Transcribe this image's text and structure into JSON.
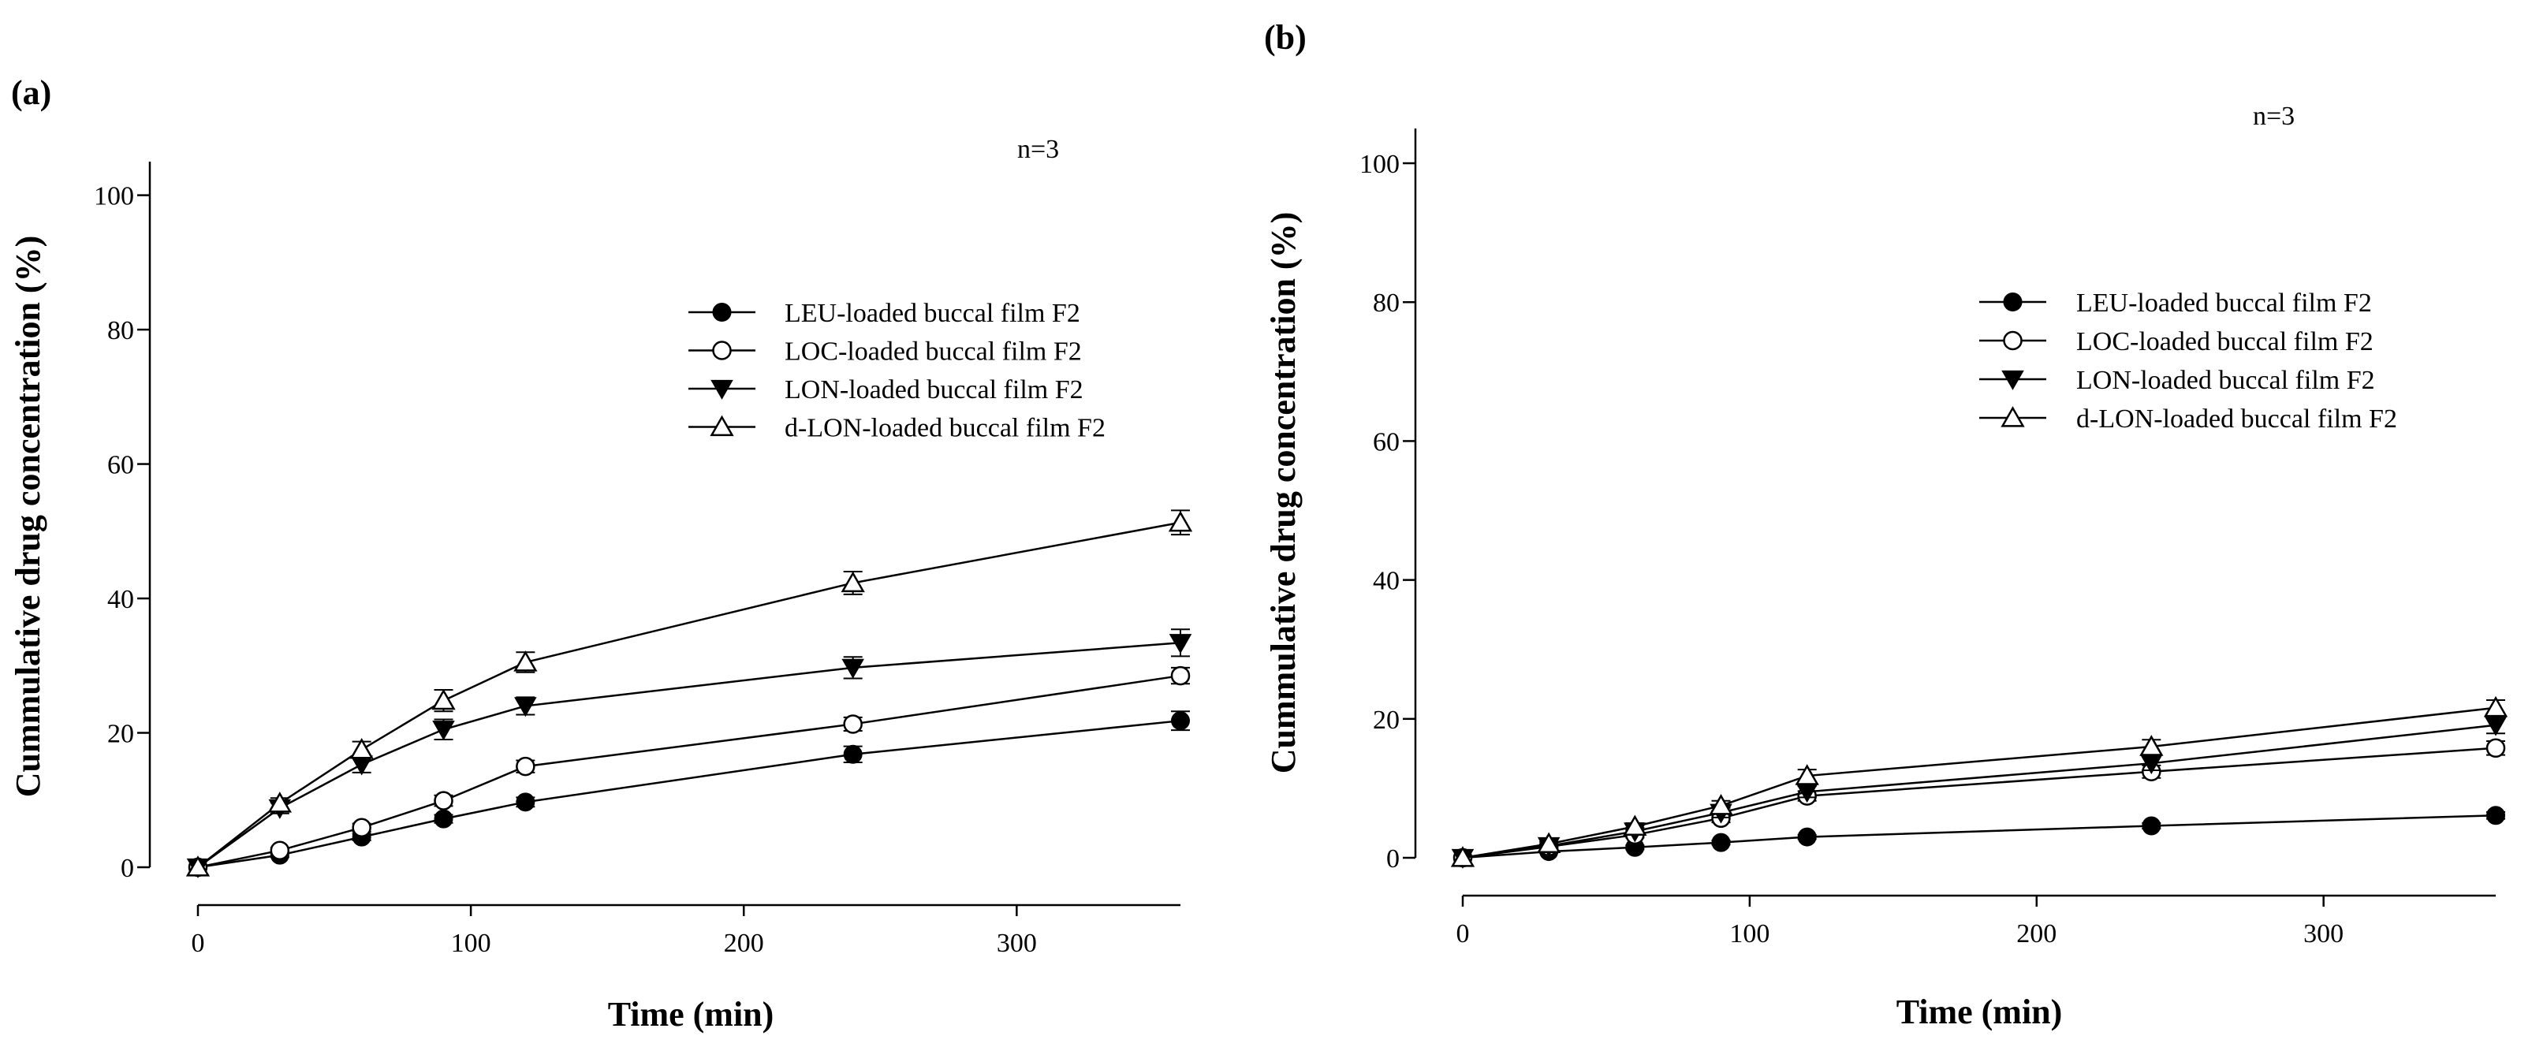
{
  "chart_data": [
    {
      "type": "line",
      "panel_label": "(a)",
      "annotation": "n=3",
      "xlabel": "Time (min)",
      "ylabel": "Cummulative drug concentration (%)",
      "xlim": [
        0,
        360
      ],
      "ylim": [
        0,
        105
      ],
      "xticks": [
        0,
        100,
        200,
        300
      ],
      "yticks": [
        0,
        20,
        40,
        60,
        80,
        100
      ],
      "x": [
        0,
        30,
        60,
        90,
        120,
        240,
        360
      ],
      "legend_position": "upper-right",
      "series": [
        {
          "name": "LEU-loaded buccal film F2",
          "marker": "circle-filled",
          "values": [
            0,
            1.8,
            4.5,
            7.2,
            9.7,
            16.8,
            21.8
          ],
          "errors": [
            0,
            0.3,
            0.5,
            0.6,
            0.7,
            1.2,
            1.4
          ]
        },
        {
          "name": "LOC-loaded buccal film F2",
          "marker": "circle-open",
          "values": [
            0,
            2.5,
            5.9,
            9.9,
            15.0,
            21.3,
            28.5
          ],
          "errors": [
            0,
            0.4,
            0.6,
            0.8,
            0.9,
            1.0,
            1.2
          ]
        },
        {
          "name": "LON-loaded buccal film F2",
          "marker": "triangle-down-filled",
          "values": [
            0,
            8.8,
            15.3,
            20.5,
            24.0,
            29.7,
            33.4
          ],
          "errors": [
            0,
            0.8,
            1.2,
            1.5,
            1.3,
            1.6,
            2.0
          ]
        },
        {
          "name": "d-LON-loaded buccal film F2",
          "marker": "triangle-up-open",
          "values": [
            0,
            9.5,
            17.5,
            24.8,
            30.5,
            42.3,
            51.3
          ],
          "errors": [
            0,
            0.8,
            1.2,
            1.6,
            1.5,
            1.7,
            1.8
          ]
        }
      ]
    },
    {
      "type": "line",
      "panel_label": "(b)",
      "annotation": "n=3",
      "xlabel": "Time (min)",
      "ylabel": "Cummulative drug concentration (%)",
      "xlim": [
        0,
        360
      ],
      "ylim": [
        0,
        105
      ],
      "xticks": [
        0,
        100,
        200,
        300
      ],
      "yticks": [
        0,
        20,
        40,
        60,
        80,
        100
      ],
      "x": [
        0,
        30,
        60,
        90,
        120,
        240,
        360
      ],
      "legend_position": "upper-right",
      "series": [
        {
          "name": "LEU-loaded buccal film F2",
          "marker": "circle-filled",
          "values": [
            0,
            0.9,
            1.5,
            2.2,
            3.0,
            4.6,
            6.1
          ],
          "errors": [
            0,
            0.2,
            0.3,
            0.3,
            0.3,
            0.4,
            0.5
          ]
        },
        {
          "name": "LOC-loaded buccal film F2",
          "marker": "circle-open",
          "values": [
            0,
            1.6,
            3.3,
            5.7,
            8.9,
            12.4,
            15.8
          ],
          "errors": [
            0,
            0.3,
            0.4,
            0.6,
            0.7,
            0.9,
            1.0
          ]
        },
        {
          "name": "LON-loaded buccal film F2",
          "marker": "triangle-down-filled",
          "values": [
            0,
            1.7,
            3.8,
            6.5,
            9.5,
            13.6,
            19.1
          ],
          "errors": [
            0,
            0.3,
            0.5,
            0.7,
            0.8,
            1.0,
            1.2
          ]
        },
        {
          "name": "d-LON-loaded buccal film F2",
          "marker": "triangle-up-open",
          "values": [
            0,
            2.0,
            4.5,
            7.5,
            11.8,
            16.0,
            21.6
          ],
          "errors": [
            0,
            0.3,
            0.5,
            0.7,
            0.9,
            1.0,
            1.1
          ]
        }
      ]
    }
  ]
}
